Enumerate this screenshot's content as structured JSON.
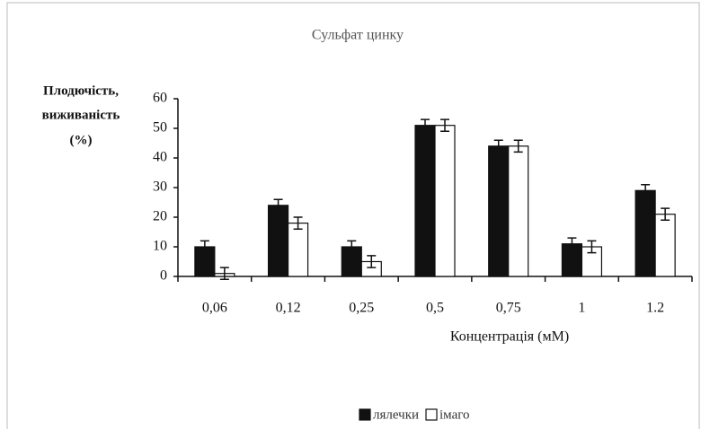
{
  "chart_data": {
    "type": "bar",
    "title": "Сульфат цинку",
    "ylabel": [
      "Плодючість,",
      "виживаність",
      "(%)"
    ],
    "xlabel": "Концентрація (мМ)",
    "categories": [
      "0,06",
      "0,12",
      "0,25",
      "0,5",
      "0,75",
      "1",
      "1.2"
    ],
    "series": [
      {
        "name": "лялечки",
        "color": "#111111",
        "values": [
          10,
          24,
          10,
          51,
          44,
          11,
          29
        ],
        "errors": [
          2,
          2,
          2,
          2,
          2,
          2,
          2
        ]
      },
      {
        "name": "імаго",
        "color": "#ffffff",
        "values": [
          1,
          18,
          5,
          51,
          44,
          10,
          21
        ],
        "errors": [
          2,
          2,
          2,
          2,
          2,
          2,
          2
        ]
      }
    ],
    "ylim": [
      0,
      60
    ],
    "yticks": [
      0,
      10,
      20,
      30,
      40,
      50,
      60
    ],
    "grid": false
  }
}
